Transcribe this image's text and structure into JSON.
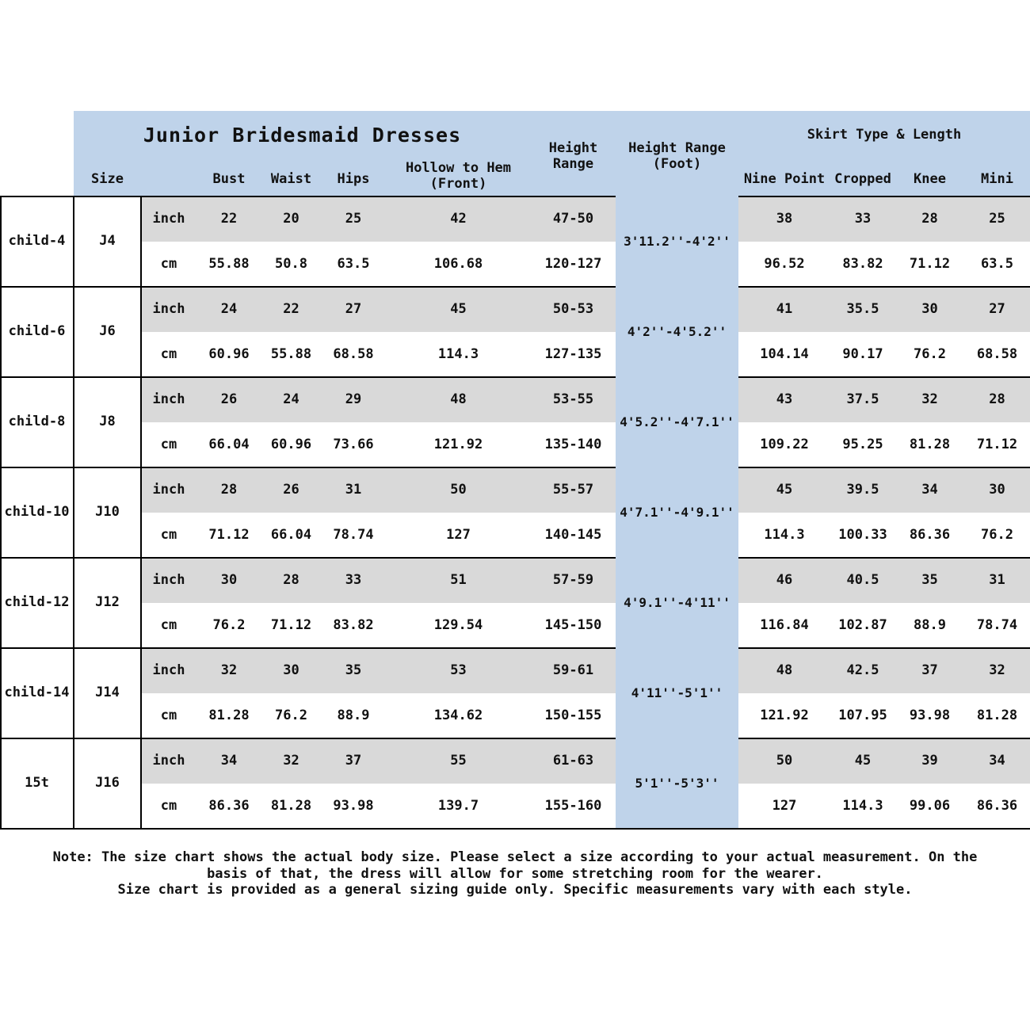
{
  "header": {
    "title": "Junior Bridesmaid Dresses",
    "size": "Size",
    "bust": "Bust",
    "waist": "Waist",
    "hips": "Hips",
    "hollow_to_hem": "Hollow to Hem\n(Front)",
    "height_range": "Height\nRange",
    "height_range_foot": "Height Range\n(Foot)",
    "skirt_group": "Skirt Type & Length",
    "skirt_columns": [
      "Nine Point",
      "Cropped",
      "Knee",
      "Mini"
    ]
  },
  "units": {
    "inch": "inch",
    "cm": "cm"
  },
  "rows": [
    {
      "child": "child-4",
      "size": "J4",
      "inch": {
        "bust": "22",
        "waist": "20",
        "hips": "25",
        "hollow_to_hem": "42",
        "height_range": "47-50",
        "skirt": [
          "38",
          "33",
          "28",
          "25"
        ]
      },
      "cm": {
        "bust": "55.88",
        "waist": "50.8",
        "hips": "63.5",
        "hollow_to_hem": "106.68",
        "height_range": "120-127",
        "skirt": [
          "96.52",
          "83.82",
          "71.12",
          "63.5"
        ]
      },
      "height_foot": "3'11.2''-4'2''"
    },
    {
      "child": "child-6",
      "size": "J6",
      "inch": {
        "bust": "24",
        "waist": "22",
        "hips": "27",
        "hollow_to_hem": "45",
        "height_range": "50-53",
        "skirt": [
          "41",
          "35.5",
          "30",
          "27"
        ]
      },
      "cm": {
        "bust": "60.96",
        "waist": "55.88",
        "hips": "68.58",
        "hollow_to_hem": "114.3",
        "height_range": "127-135",
        "skirt": [
          "104.14",
          "90.17",
          "76.2",
          "68.58"
        ]
      },
      "height_foot": "4'2''-4'5.2''"
    },
    {
      "child": "child-8",
      "size": "J8",
      "inch": {
        "bust": "26",
        "waist": "24",
        "hips": "29",
        "hollow_to_hem": "48",
        "height_range": "53-55",
        "skirt": [
          "43",
          "37.5",
          "32",
          "28"
        ]
      },
      "cm": {
        "bust": "66.04",
        "waist": "60.96",
        "hips": "73.66",
        "hollow_to_hem": "121.92",
        "height_range": "135-140",
        "skirt": [
          "109.22",
          "95.25",
          "81.28",
          "71.12"
        ]
      },
      "height_foot": "4'5.2''-4'7.1''"
    },
    {
      "child": "child-10",
      "size": "J10",
      "inch": {
        "bust": "28",
        "waist": "26",
        "hips": "31",
        "hollow_to_hem": "50",
        "height_range": "55-57",
        "skirt": [
          "45",
          "39.5",
          "34",
          "30"
        ]
      },
      "cm": {
        "bust": "71.12",
        "waist": "66.04",
        "hips": "78.74",
        "hollow_to_hem": "127",
        "height_range": "140-145",
        "skirt": [
          "114.3",
          "100.33",
          "86.36",
          "76.2"
        ]
      },
      "height_foot": "4'7.1''-4'9.1''"
    },
    {
      "child": "child-12",
      "size": "J12",
      "inch": {
        "bust": "30",
        "waist": "28",
        "hips": "33",
        "hollow_to_hem": "51",
        "height_range": "57-59",
        "skirt": [
          "46",
          "40.5",
          "35",
          "31"
        ]
      },
      "cm": {
        "bust": "76.2",
        "waist": "71.12",
        "hips": "83.82",
        "hollow_to_hem": "129.54",
        "height_range": "145-150",
        "skirt": [
          "116.84",
          "102.87",
          "88.9",
          "78.74"
        ]
      },
      "height_foot": "4'9.1''-4'11''"
    },
    {
      "child": "child-14",
      "size": "J14",
      "inch": {
        "bust": "32",
        "waist": "30",
        "hips": "35",
        "hollow_to_hem": "53",
        "height_range": "59-61",
        "skirt": [
          "48",
          "42.5",
          "37",
          "32"
        ]
      },
      "cm": {
        "bust": "81.28",
        "waist": "76.2",
        "hips": "88.9",
        "hollow_to_hem": "134.62",
        "height_range": "150-155",
        "skirt": [
          "121.92",
          "107.95",
          "93.98",
          "81.28"
        ]
      },
      "height_foot": "4'11''-5'1''"
    },
    {
      "child": "15t",
      "size": "J16",
      "inch": {
        "bust": "34",
        "waist": "32",
        "hips": "37",
        "hollow_to_hem": "55",
        "height_range": "61-63",
        "skirt": [
          "50",
          "45",
          "39",
          "34"
        ]
      },
      "cm": {
        "bust": "86.36",
        "waist": "81.28",
        "hips": "93.98",
        "hollow_to_hem": "139.7",
        "height_range": "155-160",
        "skirt": [
          "127",
          "114.3",
          "99.06",
          "86.36"
        ]
      },
      "height_foot": "5'1''-5'3''"
    }
  ],
  "note": {
    "line1": "Note: The size chart shows the actual body size. Please select a size according to your actual measurement. On the basis of that, the dress will allow for some stretching room for the wearer.",
    "line2": "Size chart is provided as a general sizing guide only. Specific measurements vary with each style."
  },
  "colors": {
    "header_blue": "#bfd3ea",
    "foot_column_blue": "#bfd3ea",
    "row_gray": "#d9d9d9",
    "border": "#000000",
    "text": "#111111"
  }
}
